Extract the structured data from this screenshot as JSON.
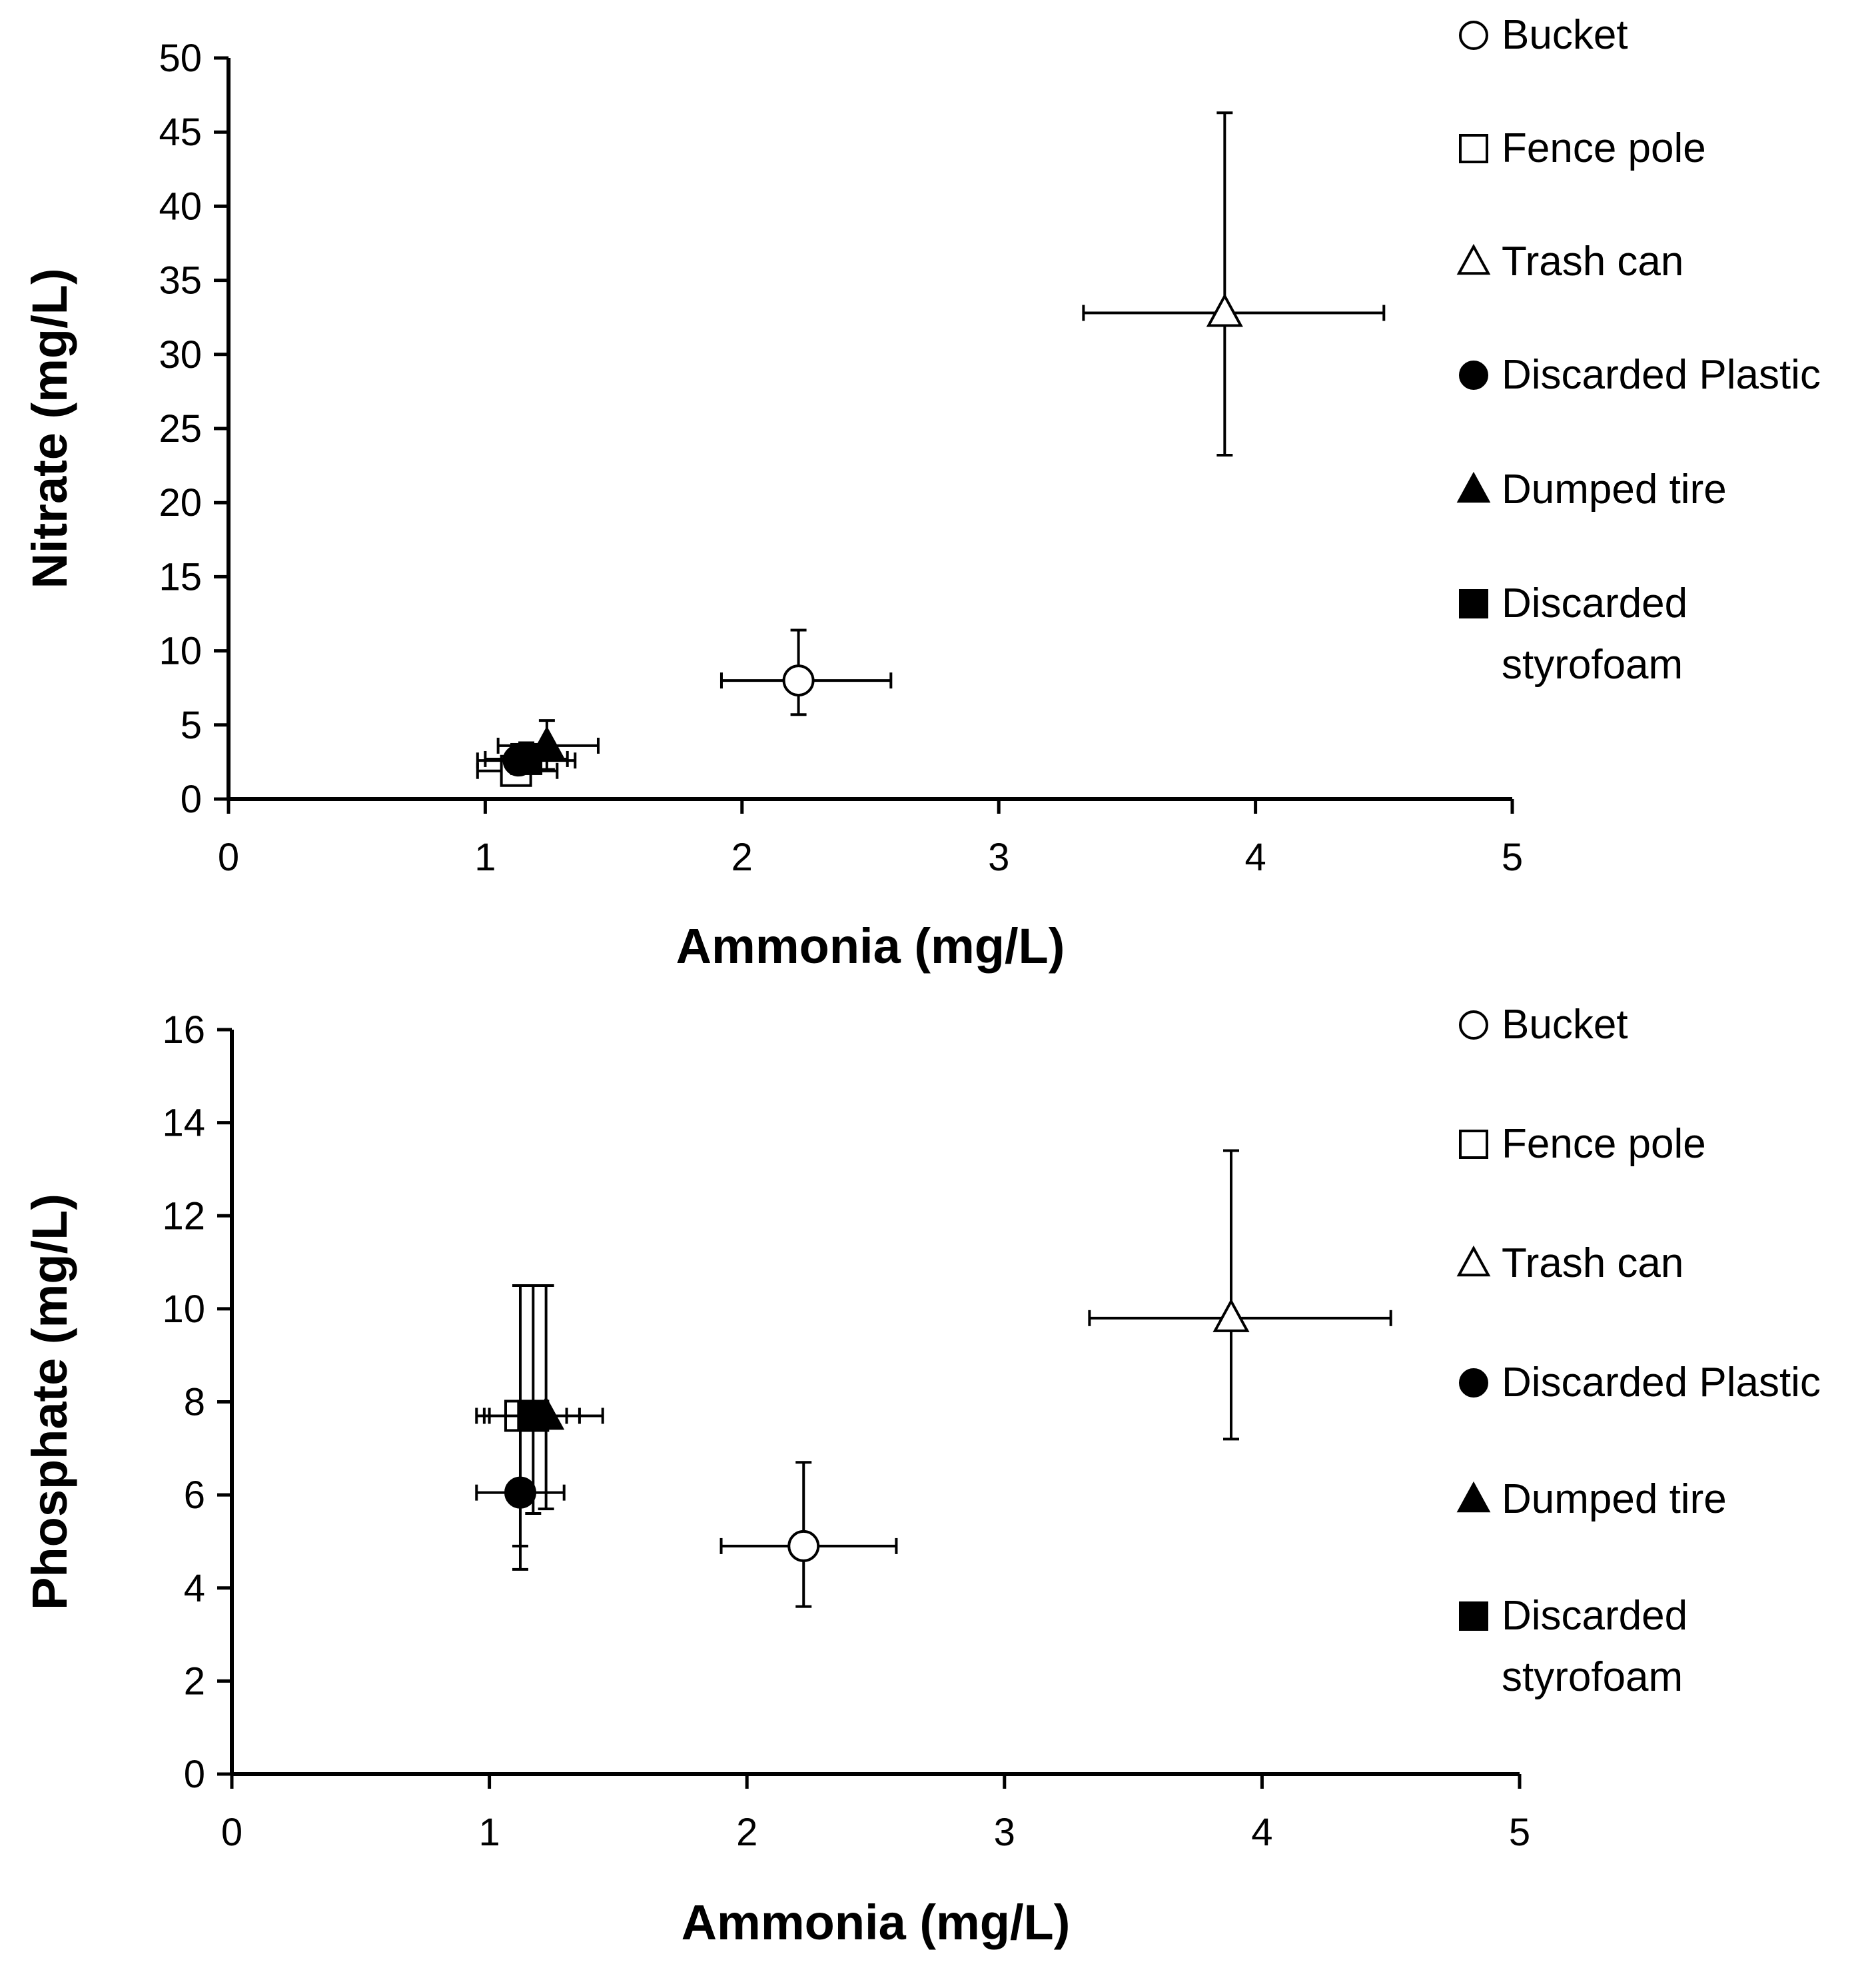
{
  "chart_data": [
    {
      "type": "scatter",
      "title": "",
      "xlabel": "Ammonia (mg/L)",
      "ylabel": "Nitrate (mg/L)",
      "xlim": [
        0,
        5
      ],
      "ylim": [
        0,
        50
      ],
      "xticks": [
        "0",
        "1",
        "2",
        "3",
        "4",
        "5"
      ],
      "yticks": [
        "0",
        "5",
        "10",
        "15",
        "20",
        "25",
        "30",
        "35",
        "40",
        "45",
        "50"
      ],
      "grid": false,
      "legend_position": "right",
      "legend": [
        {
          "name": "Bucket",
          "marker": "circle-open"
        },
        {
          "name": "Fence pole",
          "marker": "square-open"
        },
        {
          "name": "Trash can",
          "marker": "triangle-open"
        },
        {
          "name": "Discarded Plastic",
          "marker": "circle-filled"
        },
        {
          "name": "Dumped tire",
          "marker": "triangle-filled"
        },
        {
          "name": "Discarded styrofoam",
          "marker": "square-filled"
        }
      ],
      "series": [
        {
          "name": "Bucket",
          "marker": "circle-open",
          "x": 2.22,
          "y": 8.0,
          "x_err": [
            1.92,
            2.58
          ],
          "y_err": [
            5.7,
            11.4
          ]
        },
        {
          "name": "Fence pole",
          "marker": "square-open",
          "x": 1.12,
          "y": 1.9,
          "x_err": [
            0.97,
            1.28
          ],
          "y_err": [
            1.2,
            2.6
          ]
        },
        {
          "name": "Trash can",
          "marker": "triangle-open",
          "x": 3.88,
          "y": 32.8,
          "x_err": [
            3.33,
            4.5
          ],
          "y_err": [
            23.2,
            46.3
          ]
        },
        {
          "name": "Discarded Plastic",
          "marker": "circle-filled",
          "x": 1.13,
          "y": 2.6,
          "x_err": [
            0.97,
            1.35
          ],
          "y_err": [
            1.8,
            3.4
          ]
        },
        {
          "name": "Dumped tire",
          "marker": "triangle-filled",
          "x": 1.24,
          "y": 3.6,
          "x_err": [
            1.05,
            1.44
          ],
          "y_err": [
            2.0,
            5.3
          ]
        },
        {
          "name": "Discarded styrofoam",
          "marker": "square-filled",
          "x": 1.16,
          "y": 2.7,
          "x_err": [
            1.0,
            1.32
          ],
          "y_err": [
            2.0,
            3.8
          ]
        }
      ]
    },
    {
      "type": "scatter",
      "title": "",
      "xlabel": "Ammonia (mg/L)",
      "ylabel": "Phosphate (mg/L)",
      "xlim": [
        0,
        5
      ],
      "ylim": [
        0,
        16
      ],
      "xticks": [
        "0",
        "1",
        "2",
        "3",
        "4",
        "5"
      ],
      "yticks": [
        "0",
        "2",
        "4",
        "6",
        "8",
        "10",
        "12",
        "14",
        "16"
      ],
      "grid": false,
      "legend_position": "right",
      "legend": [
        {
          "name": "Bucket",
          "marker": "circle-open"
        },
        {
          "name": "Fence pole",
          "marker": "square-open"
        },
        {
          "name": "Trash can",
          "marker": "triangle-open"
        },
        {
          "name": "Discarded Plastic",
          "marker": "circle-filled"
        },
        {
          "name": "Dumped tire",
          "marker": "triangle-filled"
        },
        {
          "name": "Discarded styrofoam",
          "marker": "square-filled"
        }
      ],
      "series": [
        {
          "name": "Bucket",
          "marker": "circle-open",
          "x": 2.22,
          "y": 4.9,
          "x_err": [
            1.9,
            2.58
          ],
          "y_err": [
            3.6,
            6.7
          ]
        },
        {
          "name": "Fence pole",
          "marker": "square-open",
          "x": 1.12,
          "y": 7.7,
          "x_err": [
            0.95,
            1.3
          ],
          "y_err": [
            4.9,
            10.5
          ]
        },
        {
          "name": "Trash can",
          "marker": "triangle-open",
          "x": 3.88,
          "y": 9.8,
          "x_err": [
            3.33,
            4.5
          ],
          "y_err": [
            7.2,
            13.4
          ]
        },
        {
          "name": "Discarded Plastic",
          "marker": "circle-filled",
          "x": 1.12,
          "y": 6.05,
          "x_err": [
            0.95,
            1.29
          ],
          "y_err": [
            4.4,
            7.7
          ]
        },
        {
          "name": "Dumped tire",
          "marker": "triangle-filled",
          "x": 1.22,
          "y": 7.7,
          "x_err": [
            1.0,
            1.44
          ],
          "y_err": [
            5.7,
            10.5
          ]
        },
        {
          "name": "Discarded styrofoam",
          "marker": "square-filled",
          "x": 1.17,
          "y": 7.7,
          "x_err": [
            0.98,
            1.35
          ],
          "y_err": [
            5.6,
            10.5
          ]
        }
      ]
    }
  ]
}
